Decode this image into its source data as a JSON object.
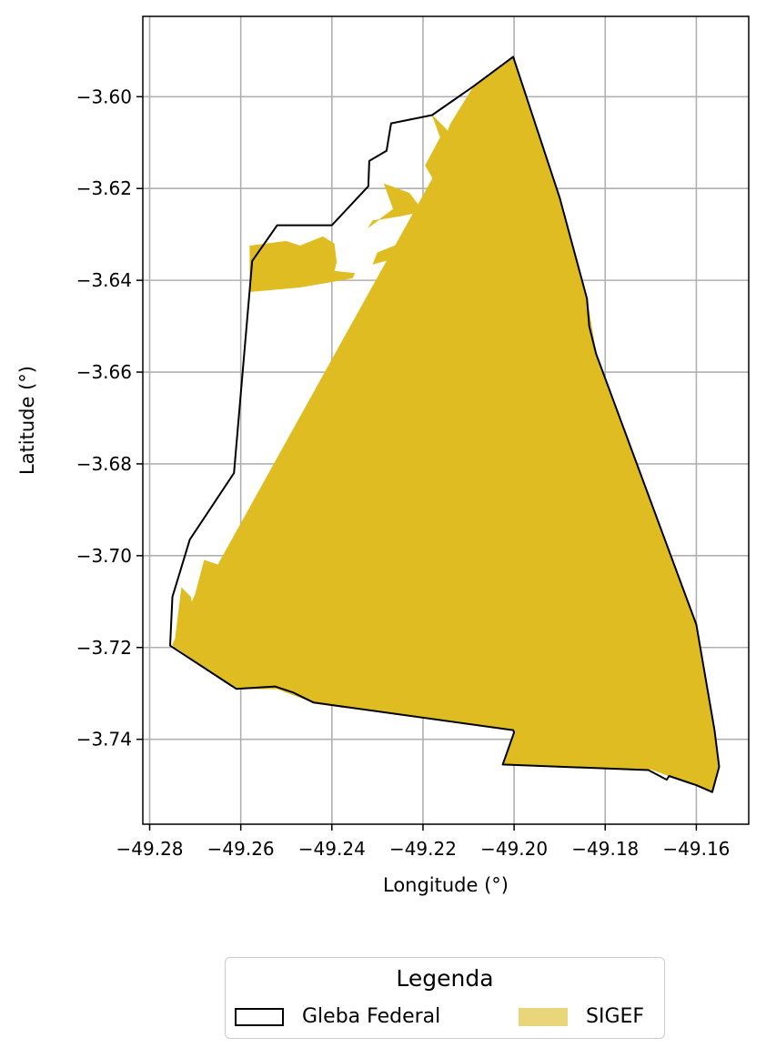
{
  "chart_data": {
    "type": "map",
    "xlabel": "Longitude (°)",
    "ylabel": "Latitude (°)",
    "xlim": [
      -49.2815,
      -49.1485
    ],
    "ylim": [
      -3.7585,
      -3.5825
    ],
    "grid": true,
    "xticks": [
      -49.28,
      -49.26,
      -49.24,
      -49.22,
      -49.2,
      -49.18,
      -49.16
    ],
    "xtick_labels": [
      "−49.28",
      "−49.26",
      "−49.24",
      "−49.22",
      "−49.20",
      "−49.18",
      "−49.16"
    ],
    "yticks": [
      -3.6,
      -3.62,
      -3.64,
      -3.66,
      -3.68,
      -3.7,
      -3.72,
      -3.74
    ],
    "ytick_labels": [
      "−3.60",
      "−3.62",
      "−3.64",
      "−3.66",
      "−3.68",
      "−3.70",
      "−3.72",
      "−3.74"
    ],
    "layers": [
      {
        "name": "SIGEF",
        "style": "fill",
        "color": "#dfbd22",
        "polygons": [
          [
            [
              -49.2002,
              -3.5913
            ],
            [
              -49.19,
              -3.622
            ],
            [
              -49.184,
              -3.644
            ],
            [
              -49.182,
              -3.656
            ],
            [
              -49.16,
              -3.715
            ],
            [
              -49.156,
              -3.738
            ],
            [
              -49.155,
              -3.746
            ],
            [
              -49.1565,
              -3.7515
            ],
            [
              -49.16,
              -3.75
            ],
            [
              -49.166,
              -3.748
            ],
            [
              -49.17,
              -3.7465
            ],
            [
              -49.2025,
              -3.7455
            ],
            [
              -49.2,
              -3.738
            ],
            [
              -49.244,
              -3.732
            ],
            [
              -49.252,
              -3.729
            ],
            [
              -49.261,
              -3.729
            ],
            [
              -49.275,
              -3.7195
            ],
            [
              -49.27,
              -3.7085
            ],
            [
              -49.268,
              -3.701
            ],
            [
              -49.265,
              -3.702
            ],
            [
              -49.218,
              -3.618
            ],
            [
              -49.214,
              -3.606
            ],
            [
              -49.209,
              -3.598
            ],
            [
              -49.2002,
              -3.5913
            ]
          ],
          [
            [
              -49.2745,
              -3.719
            ],
            [
              -49.273,
              -3.707
            ],
            [
              -49.271,
              -3.709
            ],
            [
              -49.27,
              -3.715
            ]
          ],
          [
            [
              -49.218,
              -3.604
            ],
            [
              -49.214,
              -3.608
            ],
            [
              -49.218,
              -3.621
            ],
            [
              -49.212,
              -3.62
            ]
          ],
          [
            [
              -49.2195,
              -3.615
            ],
            [
              -49.216,
              -3.6085
            ],
            [
              -49.213,
              -3.609
            ],
            [
              -49.2165,
              -3.62
            ]
          ],
          [
            [
              -49.258,
              -3.6325
            ],
            [
              -49.25,
              -3.6315
            ],
            [
              -49.247,
              -3.6325
            ],
            [
              -49.242,
              -3.6305
            ],
            [
              -49.2395,
              -3.632
            ],
            [
              -49.239,
              -3.636
            ],
            [
              -49.2395,
              -3.638
            ],
            [
              -49.235,
              -3.6385
            ],
            [
              -49.2355,
              -3.6395
            ],
            [
              -49.241,
              -3.6405
            ],
            [
              -49.247,
              -3.6415
            ],
            [
              -49.258,
              -3.6425
            ]
          ],
          [
            [
              -49.2285,
              -3.619
            ],
            [
              -49.223,
              -3.621
            ],
            [
              -49.22,
              -3.625
            ],
            [
              -49.225,
              -3.626
            ],
            [
              -49.231,
              -3.627
            ],
            [
              -49.232,
              -3.6285
            ],
            [
              -49.2265,
              -3.6245
            ]
          ],
          [
            [
              -49.231,
              -3.6365
            ],
            [
              -49.222,
              -3.634
            ],
            [
              -49.22,
              -3.63
            ],
            [
              -49.225,
              -3.632
            ],
            [
              -49.23,
              -3.634
            ]
          ]
        ]
      },
      {
        "name": "Gleba Federal",
        "style": "outline",
        "color": "#000000",
        "polygons": [
          [
            [
              -49.2002,
              -3.5913
            ],
            [
              -49.19,
              -3.622
            ],
            [
              -49.184,
              -3.644
            ],
            [
              -49.1835,
              -3.65
            ],
            [
              -49.182,
              -3.656
            ],
            [
              -49.16,
              -3.715
            ],
            [
              -49.156,
              -3.738
            ],
            [
              -49.155,
              -3.746
            ],
            [
              -49.1565,
              -3.7515
            ],
            [
              -49.16,
              -3.75
            ],
            [
              -49.166,
              -3.748
            ],
            [
              -49.1665,
              -3.7488
            ],
            [
              -49.1705,
              -3.7467
            ],
            [
              -49.2025,
              -3.7455
            ],
            [
              -49.2,
              -3.7385
            ],
            [
              -49.2002,
              -3.738
            ],
            [
              -49.244,
              -3.732
            ],
            [
              -49.2485,
              -3.7298
            ],
            [
              -49.2525,
              -3.7285
            ],
            [
              -49.261,
              -3.729
            ],
            [
              -49.2755,
              -3.7196
            ],
            [
              -49.275,
              -3.709
            ],
            [
              -49.2712,
              -3.6965
            ],
            [
              -49.2615,
              -3.682
            ],
            [
              -49.2575,
              -3.6358
            ],
            [
              -49.252,
              -3.628
            ],
            [
              -49.24,
              -3.628
            ],
            [
              -49.232,
              -3.6195
            ],
            [
              -49.2318,
              -3.614
            ],
            [
              -49.228,
              -3.6118
            ],
            [
              -49.227,
              -3.6058
            ],
            [
              -49.218,
              -3.604
            ],
            [
              -49.209,
              -3.5978
            ],
            [
              -49.2002,
              -3.5913
            ]
          ]
        ]
      }
    ]
  },
  "legend": {
    "title": "Legenda",
    "items": [
      {
        "label": "Gleba Federal",
        "swatch_fill": "#ffffff",
        "swatch_stroke": "#000000"
      },
      {
        "label": "SIGEF",
        "swatch_fill": "#e9d57a",
        "swatch_stroke": "#e9d57a"
      }
    ]
  },
  "colors": {
    "gleba_outline": "#000000",
    "sigef_fill": "#dfbd22",
    "grid": "#b0b0b0"
  }
}
